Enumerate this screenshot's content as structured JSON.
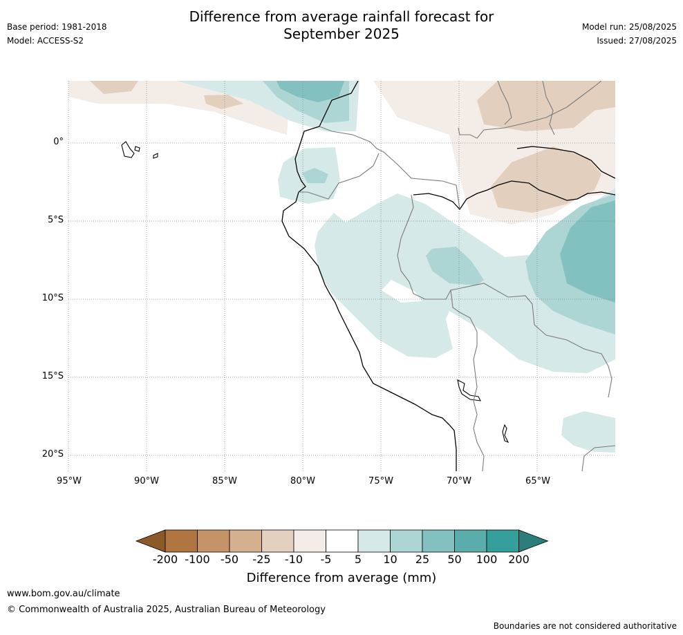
{
  "title": {
    "line1": "Difference from average rainfall forecast for",
    "line2": "September 2025"
  },
  "meta_left": {
    "base_period": "Base period: 1981-2018",
    "model": "Model: ACCESS-S2"
  },
  "meta_right": {
    "model_run": "Model run: 25/08/2025",
    "issued": "Issued: 27/08/2025"
  },
  "map": {
    "lat_labels": [
      "0°",
      "5°S",
      "10°S",
      "15°S",
      "20°S"
    ],
    "lon_labels": [
      "95°W",
      "90°W",
      "85°W",
      "80°W",
      "75°W",
      "70°W",
      "65°W"
    ],
    "lat_values": [
      0,
      -5,
      -10,
      -15,
      -20
    ],
    "lon_values": [
      -95,
      -90,
      -85,
      -80,
      -75,
      -70,
      -65
    ],
    "gridlines": "dotted"
  },
  "colorbar": {
    "title": "Difference from average (mm)",
    "tick_labels": [
      "-200",
      "-100",
      "-50",
      "-25",
      "-10",
      "-5",
      "5",
      "10",
      "25",
      "50",
      "100",
      "200"
    ],
    "colors": [
      "#8c5a28",
      "#b07540",
      "#c49468",
      "#d5b08e",
      "#e4d0bf",
      "#f4ece7",
      "#ffffff",
      "#d5e9e8",
      "#acd5d4",
      "#83c1c0",
      "#5aadab",
      "#349f9b",
      "#2a7d7a"
    ]
  },
  "footer": {
    "url": "www.bom.gov.au/climate",
    "copyright": "© Commonwealth of Australia 2025, Australian Bureau of Meteorology",
    "note": "Boundaries are not considered authoritative"
  }
}
